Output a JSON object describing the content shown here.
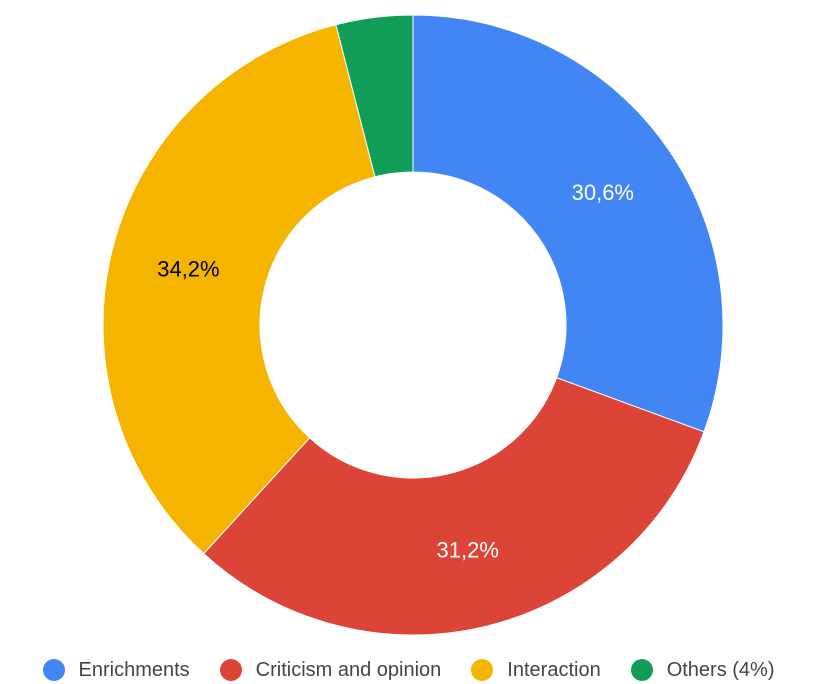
{
  "chart_data": {
    "type": "pie",
    "donut": true,
    "title": "",
    "legend_position": "bottom",
    "slices": [
      {
        "name": "Enrichments",
        "value": 30.6,
        "label": "30,6%",
        "color": "#4285F4",
        "label_color": "#ffffff"
      },
      {
        "name": "Criticism and opinion",
        "value": 31.2,
        "label": "31,2%",
        "color": "#DB4437",
        "label_color": "#ffffff"
      },
      {
        "name": "Interaction",
        "value": 34.2,
        "label": "34,2%",
        "color": "#F4B400",
        "label_color": "#000000"
      },
      {
        "name": "Others (4%)",
        "value": 4.0,
        "label": "",
        "color": "#0F9D58",
        "label_color": "#ffffff"
      }
    ]
  }
}
